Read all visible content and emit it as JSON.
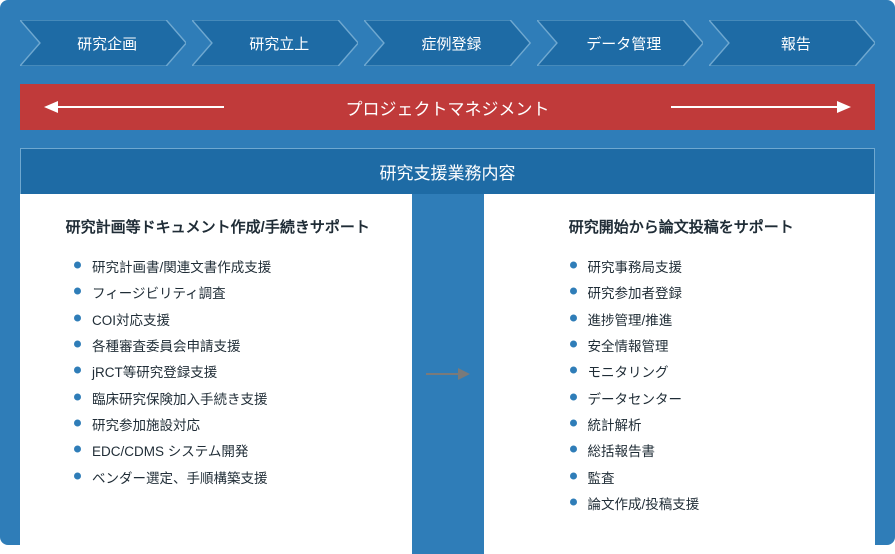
{
  "colors": {
    "container_bg": "#2f7db8",
    "phase_fill": "#1e6ba5",
    "phase_stroke": "#6fa8d0",
    "pm_bg": "#c03a3a",
    "white": "#ffffff",
    "text_dark": "#1f2c36",
    "bullet": "#2f7db8",
    "arrow_gray": "#7a7a7a"
  },
  "phases": [
    {
      "label": "研究企画"
    },
    {
      "label": "研究立上"
    },
    {
      "label": "症例登録"
    },
    {
      "label": "データ管理"
    },
    {
      "label": "報告"
    }
  ],
  "pm": {
    "label": "プロジェクトマネジメント"
  },
  "support": {
    "header": "研究支援業務内容",
    "left": {
      "title": "研究計画等ドキュメント作成/手続きサポート",
      "items": [
        "研究計画書/関連文書作成支援",
        "フィージビリティ調査",
        "COI対応支援",
        "各種審査委員会申請支援",
        "jRCT等研究登録支援",
        "臨床研究保険加入手続き支援",
        "研究参加施設対応",
        "EDC/CDMS システム開発",
        "ベンダー選定、手順構築支援"
      ]
    },
    "right": {
      "title": "研究開始から論文投稿をサポート",
      "items": [
        "研究事務局支援",
        "研究参加者登録",
        "進捗管理/推進",
        "安全情報管理",
        "モニタリング",
        "データセンター",
        "統計解析",
        "総括報告書",
        "監査",
        "論文作成/投稿支援"
      ]
    }
  }
}
